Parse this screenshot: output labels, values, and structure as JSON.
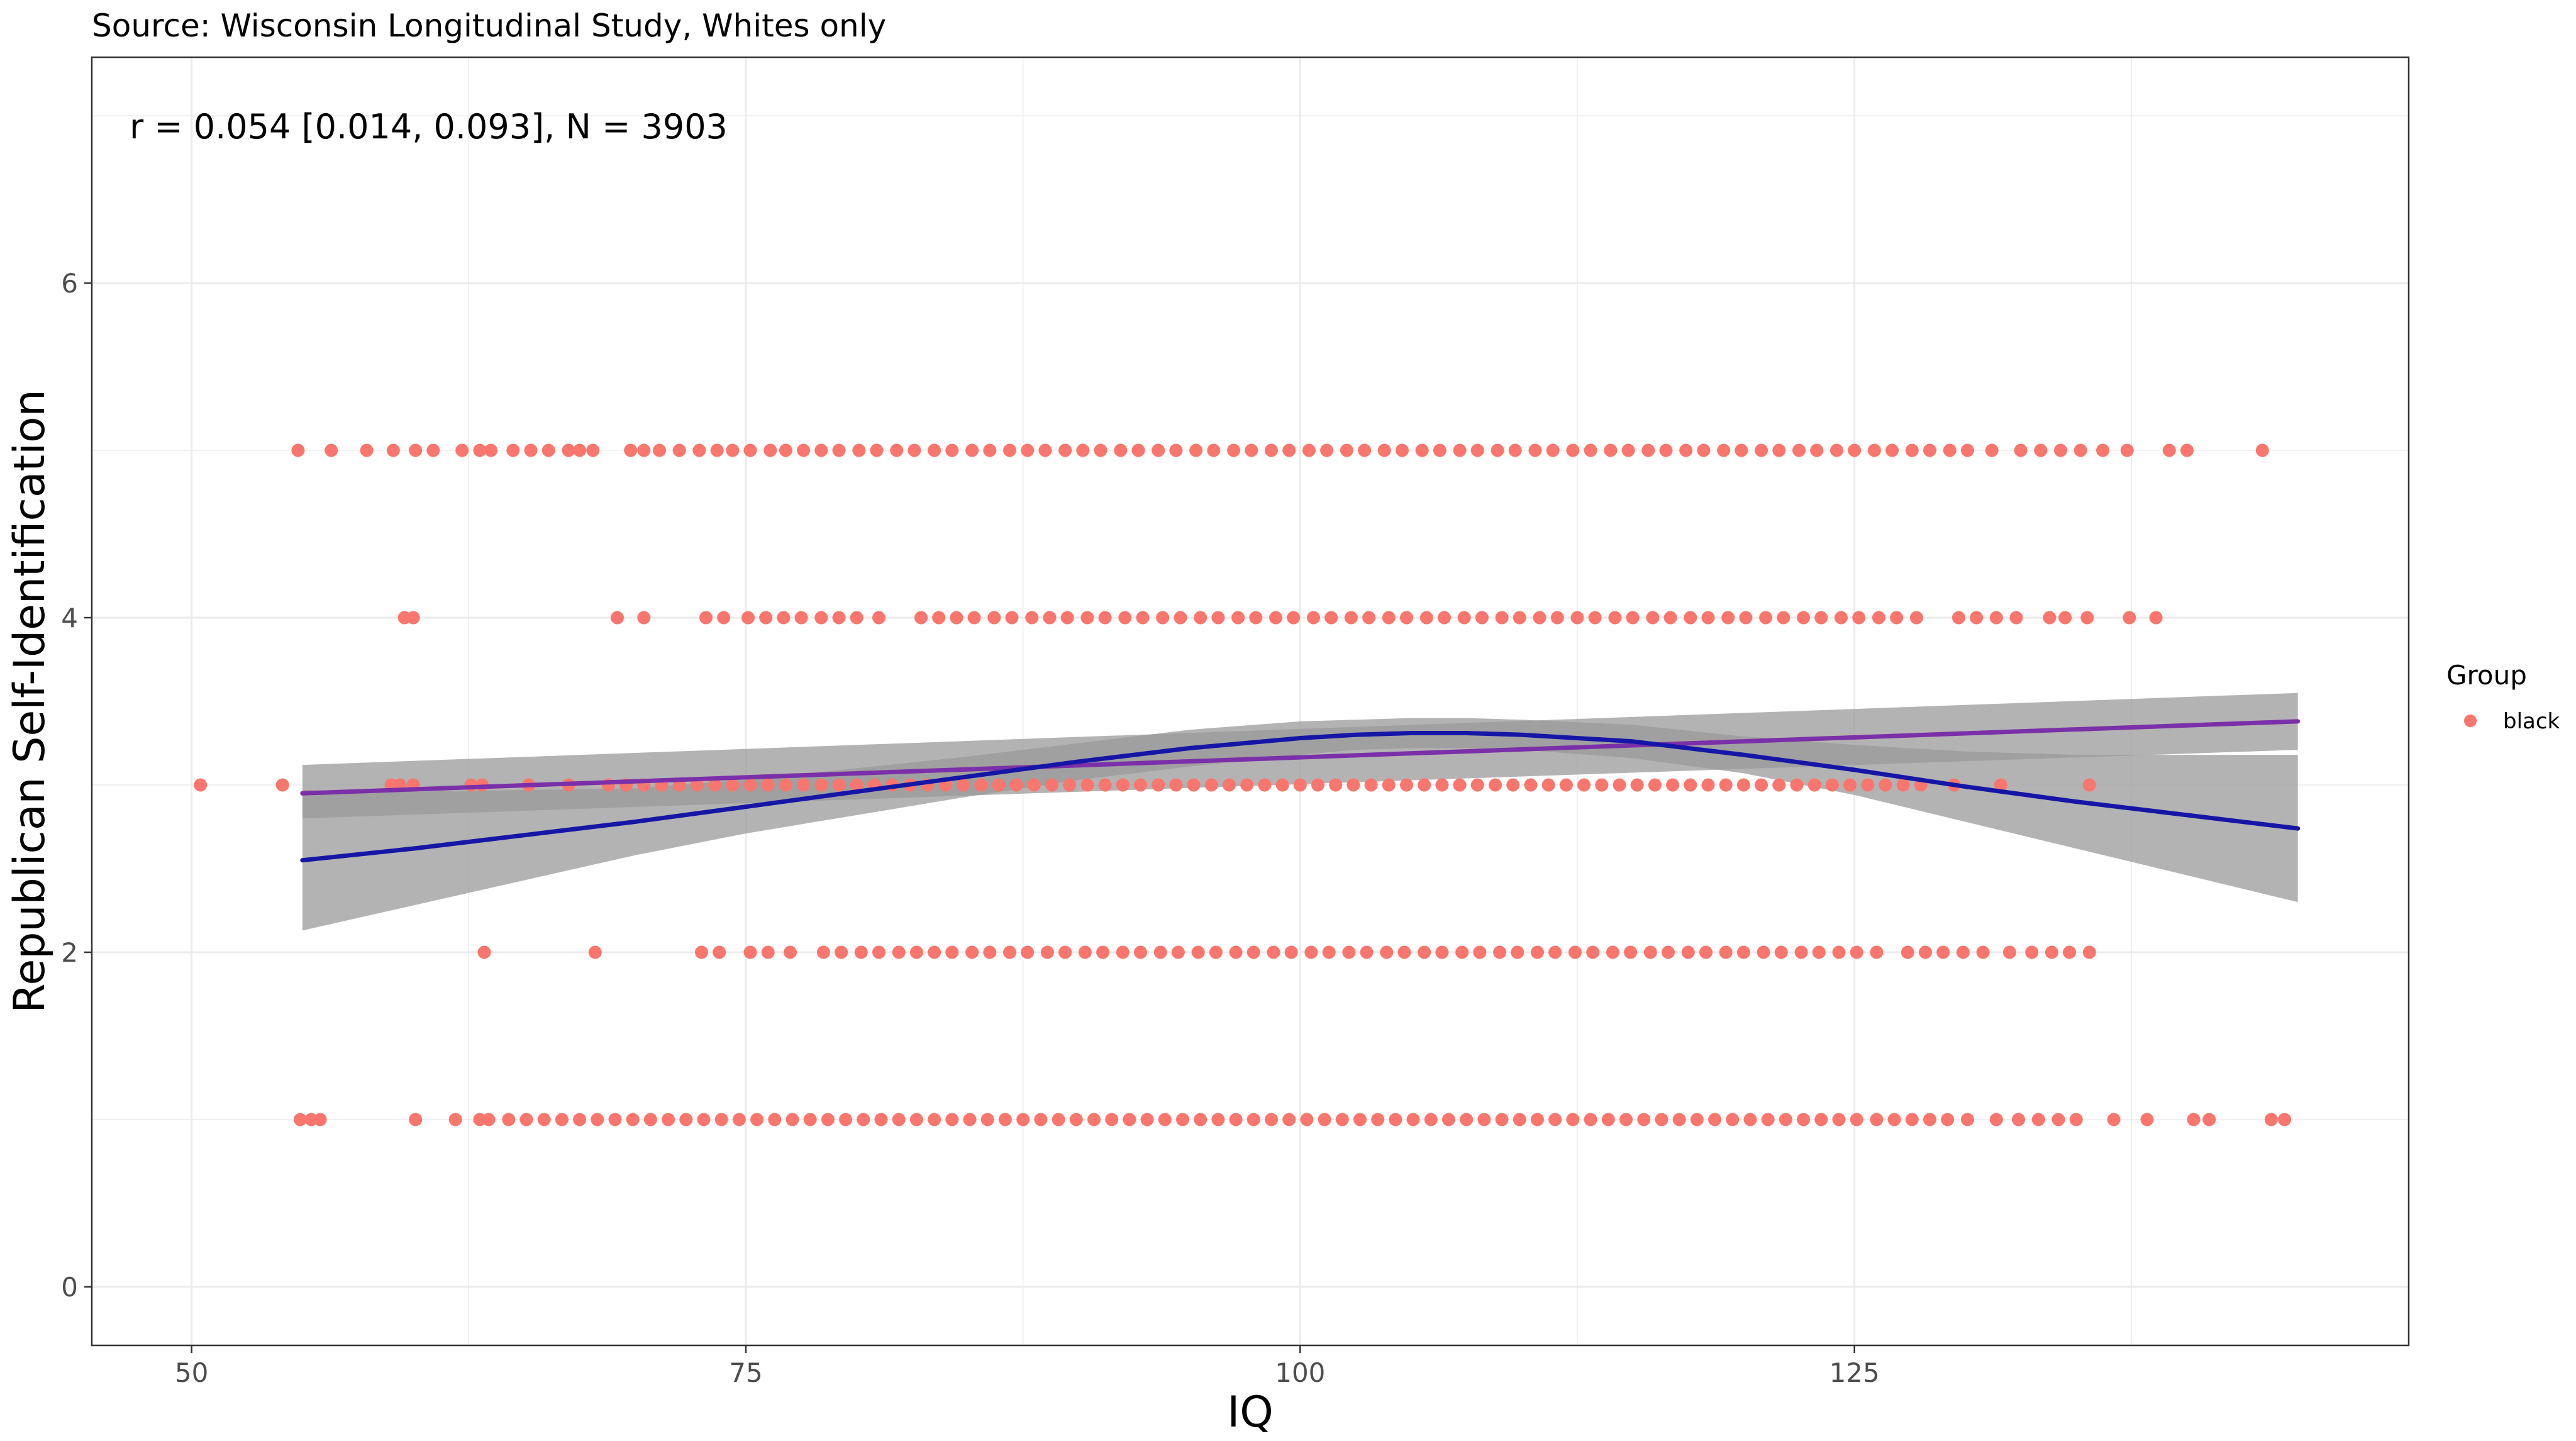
{
  "chart_data": {
    "type": "scatter",
    "subtitle": "Source: Wisconsin Longitudinal Study, Whites only",
    "annotation": "r =  0.054 [0.014, 0.093], N = 3903",
    "xlabel": "IQ",
    "ylabel": "Republican Self-Identification",
    "xlim": [
      45.5,
      150
    ],
    "ylim": [
      -0.35,
      7.35
    ],
    "x_ticks": [
      50,
      75,
      100,
      125
    ],
    "y_ticks": [
      0,
      2,
      4,
      6
    ],
    "grid": true,
    "legend": {
      "title": "Group",
      "placement": "right",
      "entries": [
        "black"
      ]
    },
    "colors": {
      "points": "#F8766D",
      "linear_fit": "#7B2FA8",
      "loess_fit": "#1616A6",
      "ci_band": "#999999",
      "grid": "#EBEBEB",
      "panel_border": "#333333"
    },
    "point_rows": [
      {
        "y": 5,
        "x": [
          54.8,
          56.3,
          57.9,
          59.1,
          60.1,
          60.9,
          62.2,
          63.0,
          63.5,
          64.5,
          65.3,
          66.1,
          67.0,
          67.5,
          68.1,
          69.8,
          70.4,
          71.1,
          72.0,
          72.9,
          73.7,
          74.4,
          75.2,
          76.1,
          76.8,
          77.6,
          78.4,
          79.2,
          80.1,
          80.9,
          81.8,
          82.6,
          83.5,
          84.3,
          85.2,
          86.0,
          86.9,
          87.7,
          88.5,
          89.4,
          90.2,
          91.0,
          91.9,
          92.7,
          93.6,
          94.4,
          95.3,
          96.1,
          97.0,
          97.8,
          98.7,
          99.5,
          100.4,
          101.2,
          102.1,
          102.9,
          103.8,
          104.6,
          105.5,
          106.3,
          107.2,
          108.0,
          108.9,
          109.7,
          110.6,
          111.4,
          112.3,
          113.1,
          114.0,
          114.8,
          115.7,
          116.5,
          117.4,
          118.2,
          119.1,
          119.9,
          120.8,
          121.6,
          122.5,
          123.3,
          124.2,
          125.0,
          125.9,
          126.7,
          127.6,
          128.4,
          129.3,
          130.1,
          131.2,
          132.5,
          133.4,
          134.3,
          135.2,
          136.2,
          137.3,
          139.2,
          140.0,
          143.4
        ]
      },
      {
        "y": 4,
        "x": [
          59.6,
          60.0,
          69.2,
          70.4,
          73.2,
          74.0,
          75.1,
          75.9,
          76.7,
          77.5,
          78.4,
          79.2,
          80.0,
          81.0,
          82.9,
          83.7,
          84.5,
          85.3,
          86.2,
          87.0,
          87.9,
          88.7,
          89.5,
          90.4,
          91.2,
          92.1,
          92.9,
          93.8,
          94.6,
          95.5,
          96.3,
          97.2,
          98.0,
          98.9,
          99.7,
          100.6,
          101.4,
          102.3,
          103.1,
          104.0,
          104.8,
          105.7,
          106.5,
          107.4,
          108.2,
          109.1,
          109.9,
          110.8,
          111.6,
          112.5,
          113.3,
          114.2,
          115.0,
          115.9,
          116.7,
          117.6,
          118.4,
          119.3,
          120.1,
          121.0,
          121.8,
          122.7,
          123.5,
          124.4,
          125.2,
          126.1,
          126.9,
          127.8,
          129.7,
          130.5,
          131.4,
          132.3,
          133.8,
          134.5,
          135.5,
          137.4,
          138.6
        ]
      },
      {
        "y": 3,
        "x": [
          50.4,
          54.1,
          59.0,
          59.4,
          60.0,
          62.6,
          63.1,
          65.2,
          67.0,
          68.8,
          69.6,
          70.4,
          71.2,
          72.0,
          72.8,
          73.6,
          74.4,
          75.2,
          76.0,
          76.8,
          77.6,
          78.4,
          79.2,
          80.0,
          80.8,
          81.6,
          82.4,
          83.2,
          84.0,
          84.8,
          85.6,
          86.4,
          87.2,
          88.0,
          88.8,
          89.6,
          90.4,
          91.2,
          92.0,
          92.8,
          93.6,
          94.4,
          95.2,
          96.0,
          96.8,
          97.6,
          98.4,
          99.2,
          100.0,
          100.8,
          101.6,
          102.4,
          103.2,
          104.0,
          104.8,
          105.6,
          106.4,
          107.2,
          108.0,
          108.8,
          109.6,
          110.4,
          111.2,
          112.0,
          112.8,
          113.6,
          114.4,
          115.2,
          116.0,
          116.8,
          117.6,
          118.4,
          119.2,
          120.0,
          120.8,
          121.6,
          122.4,
          123.2,
          124.0,
          124.8,
          125.6,
          126.4,
          127.2,
          128.0,
          129.5,
          131.6,
          135.6
        ]
      },
      {
        "y": 2,
        "x": [
          63.2,
          68.2,
          73.0,
          73.8,
          75.2,
          76.0,
          77.0,
          78.5,
          79.3,
          80.2,
          81.0,
          81.9,
          82.7,
          83.5,
          84.3,
          85.2,
          86.0,
          86.9,
          87.7,
          88.6,
          89.4,
          90.3,
          91.1,
          92.0,
          92.8,
          93.7,
          94.5,
          95.4,
          96.2,
          97.1,
          97.9,
          98.8,
          99.6,
          100.5,
          101.3,
          102.2,
          103.0,
          103.9,
          104.7,
          105.6,
          106.4,
          107.3,
          108.1,
          109.0,
          109.8,
          110.7,
          111.5,
          112.4,
          113.2,
          114.1,
          114.9,
          115.8,
          116.6,
          117.5,
          118.3,
          119.2,
          120.0,
          120.9,
          121.7,
          122.6,
          123.4,
          124.3,
          125.1,
          126.0,
          127.4,
          128.2,
          129.0,
          129.9,
          130.8,
          132.0,
          133.0,
          133.9,
          134.7,
          135.6
        ]
      },
      {
        "y": 1,
        "x": [
          54.9,
          55.4,
          55.8,
          60.1,
          61.9,
          63.0,
          63.4,
          64.3,
          65.1,
          65.9,
          66.7,
          67.5,
          68.3,
          69.1,
          69.9,
          70.7,
          71.5,
          72.3,
          73.1,
          73.9,
          74.7,
          75.5,
          76.3,
          77.1,
          77.9,
          78.7,
          79.5,
          80.3,
          81.1,
          81.9,
          82.7,
          83.5,
          84.3,
          85.1,
          85.9,
          86.7,
          87.5,
          88.3,
          89.1,
          89.9,
          90.7,
          91.5,
          92.3,
          93.1,
          93.9,
          94.7,
          95.5,
          96.3,
          97.1,
          97.9,
          98.7,
          99.5,
          100.3,
          101.1,
          101.9,
          102.7,
          103.5,
          104.3,
          105.1,
          105.9,
          106.7,
          107.5,
          108.3,
          109.1,
          109.9,
          110.7,
          111.5,
          112.3,
          113.1,
          113.9,
          114.7,
          115.5,
          116.3,
          117.1,
          117.9,
          118.7,
          119.5,
          120.3,
          121.1,
          121.9,
          122.7,
          123.5,
          124.3,
          125.1,
          126.0,
          126.8,
          127.6,
          128.4,
          129.2,
          130.1,
          131.4,
          132.4,
          133.3,
          134.2,
          135.0,
          136.7,
          138.2,
          140.3,
          141.0,
          143.8,
          144.4
        ]
      }
    ],
    "linear_fit": {
      "x": [
        55,
        145
      ],
      "y": [
        2.95,
        3.38
      ],
      "ci_lower": [
        2.8,
        3.21
      ],
      "ci_upper": [
        3.12,
        3.55
      ]
    },
    "loess_fit": {
      "x": [
        55,
        60,
        65,
        70,
        75,
        80,
        85,
        90,
        95,
        100,
        102.5,
        105,
        107.5,
        110,
        115,
        120,
        125,
        130,
        135,
        140,
        145
      ],
      "y": [
        2.55,
        2.62,
        2.7,
        2.78,
        2.87,
        2.96,
        3.05,
        3.14,
        3.22,
        3.28,
        3.3,
        3.31,
        3.31,
        3.3,
        3.26,
        3.18,
        3.09,
        2.99,
        2.9,
        2.82,
        2.74
      ],
      "ci_lower": [
        2.13,
        2.28,
        2.43,
        2.58,
        2.71,
        2.82,
        2.93,
        3.03,
        3.11,
        3.18,
        3.21,
        3.22,
        3.22,
        3.21,
        3.16,
        3.07,
        2.94,
        2.78,
        2.62,
        2.46,
        2.3
      ],
      "ci_upper": [
        2.97,
        2.96,
        2.97,
        2.98,
        3.03,
        3.1,
        3.17,
        3.25,
        3.33,
        3.38,
        3.39,
        3.4,
        3.4,
        3.39,
        3.36,
        3.29,
        3.24,
        3.2,
        3.18,
        3.18,
        3.18
      ]
    }
  }
}
